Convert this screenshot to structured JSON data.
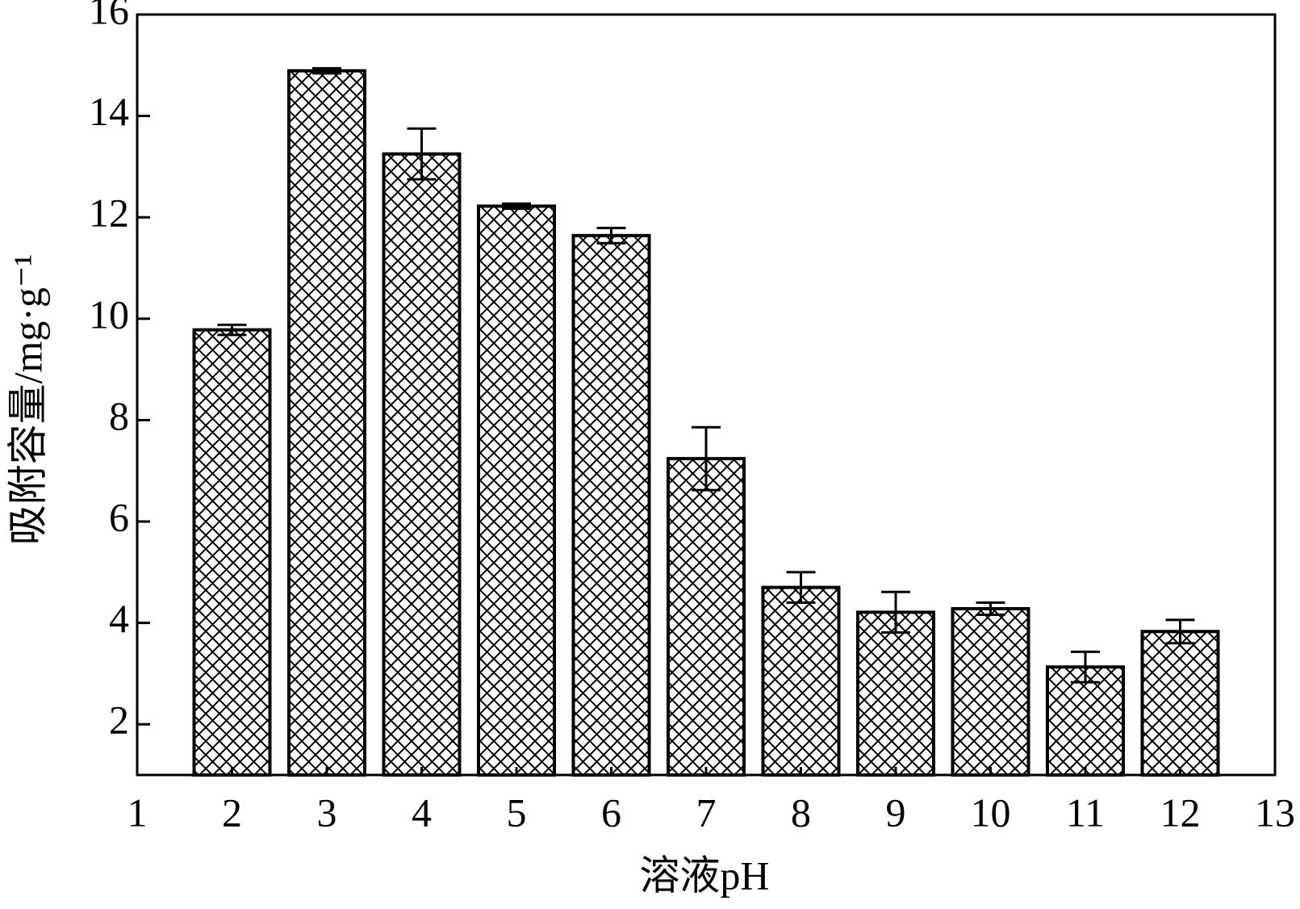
{
  "chart_data": {
    "type": "bar",
    "x_label": "溶液pH",
    "y_label": "吸附容量/mg·g⁻¹",
    "x": [
      2,
      3,
      4,
      5,
      6,
      7,
      8,
      9,
      10,
      11,
      12
    ],
    "values": [
      9.78,
      14.89,
      13.25,
      12.22,
      11.64,
      7.24,
      4.7,
      4.21,
      4.28,
      3.13,
      3.83
    ],
    "errors": [
      0.1,
      0.05,
      0.5,
      0.05,
      0.15,
      0.62,
      0.3,
      0.4,
      0.12,
      0.3,
      0.23
    ],
    "bar_width": 0.8,
    "color": "#000000",
    "xlim": [
      1,
      13
    ],
    "xticks": [
      1,
      2,
      3,
      4,
      5,
      6,
      7,
      8,
      9,
      10,
      11,
      12,
      13
    ],
    "ylim": [
      1,
      16
    ],
    "yticks": [
      2,
      4,
      6,
      8,
      10,
      12,
      14,
      16
    ]
  }
}
